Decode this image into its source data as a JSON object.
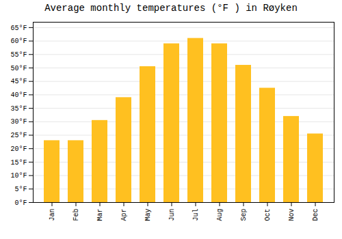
{
  "chart_data": {
    "type": "bar",
    "title": "Average monthly temperatures (°F ) in Røyken",
    "categories": [
      "Jan",
      "Feb",
      "Mar",
      "Apr",
      "May",
      "Jun",
      "Jul",
      "Aug",
      "Sep",
      "Oct",
      "Nov",
      "Dec"
    ],
    "values": [
      23,
      23,
      30.5,
      39,
      50.5,
      59,
      61,
      59,
      51,
      42.5,
      32,
      25.5
    ],
    "color": "#FFC020",
    "ylim": [
      0,
      67
    ],
    "yticks": [
      {
        "value": 0,
        "label": "0°F"
      },
      {
        "value": 5,
        "label": "5°F"
      },
      {
        "value": 10,
        "label": "10°F"
      },
      {
        "value": 15,
        "label": "15°F"
      },
      {
        "value": 20,
        "label": "20°F"
      },
      {
        "value": 25,
        "label": "25°F"
      },
      {
        "value": 30,
        "label": "30°F"
      },
      {
        "value": 35,
        "label": "35°F"
      },
      {
        "value": 40,
        "label": "40°F"
      },
      {
        "value": 45,
        "label": "45°F"
      },
      {
        "value": 50,
        "label": "50°F"
      },
      {
        "value": 55,
        "label": "55°F"
      },
      {
        "value": 60,
        "label": "60°F"
      },
      {
        "value": 65,
        "label": "65°F"
      }
    ],
    "grid": true
  }
}
